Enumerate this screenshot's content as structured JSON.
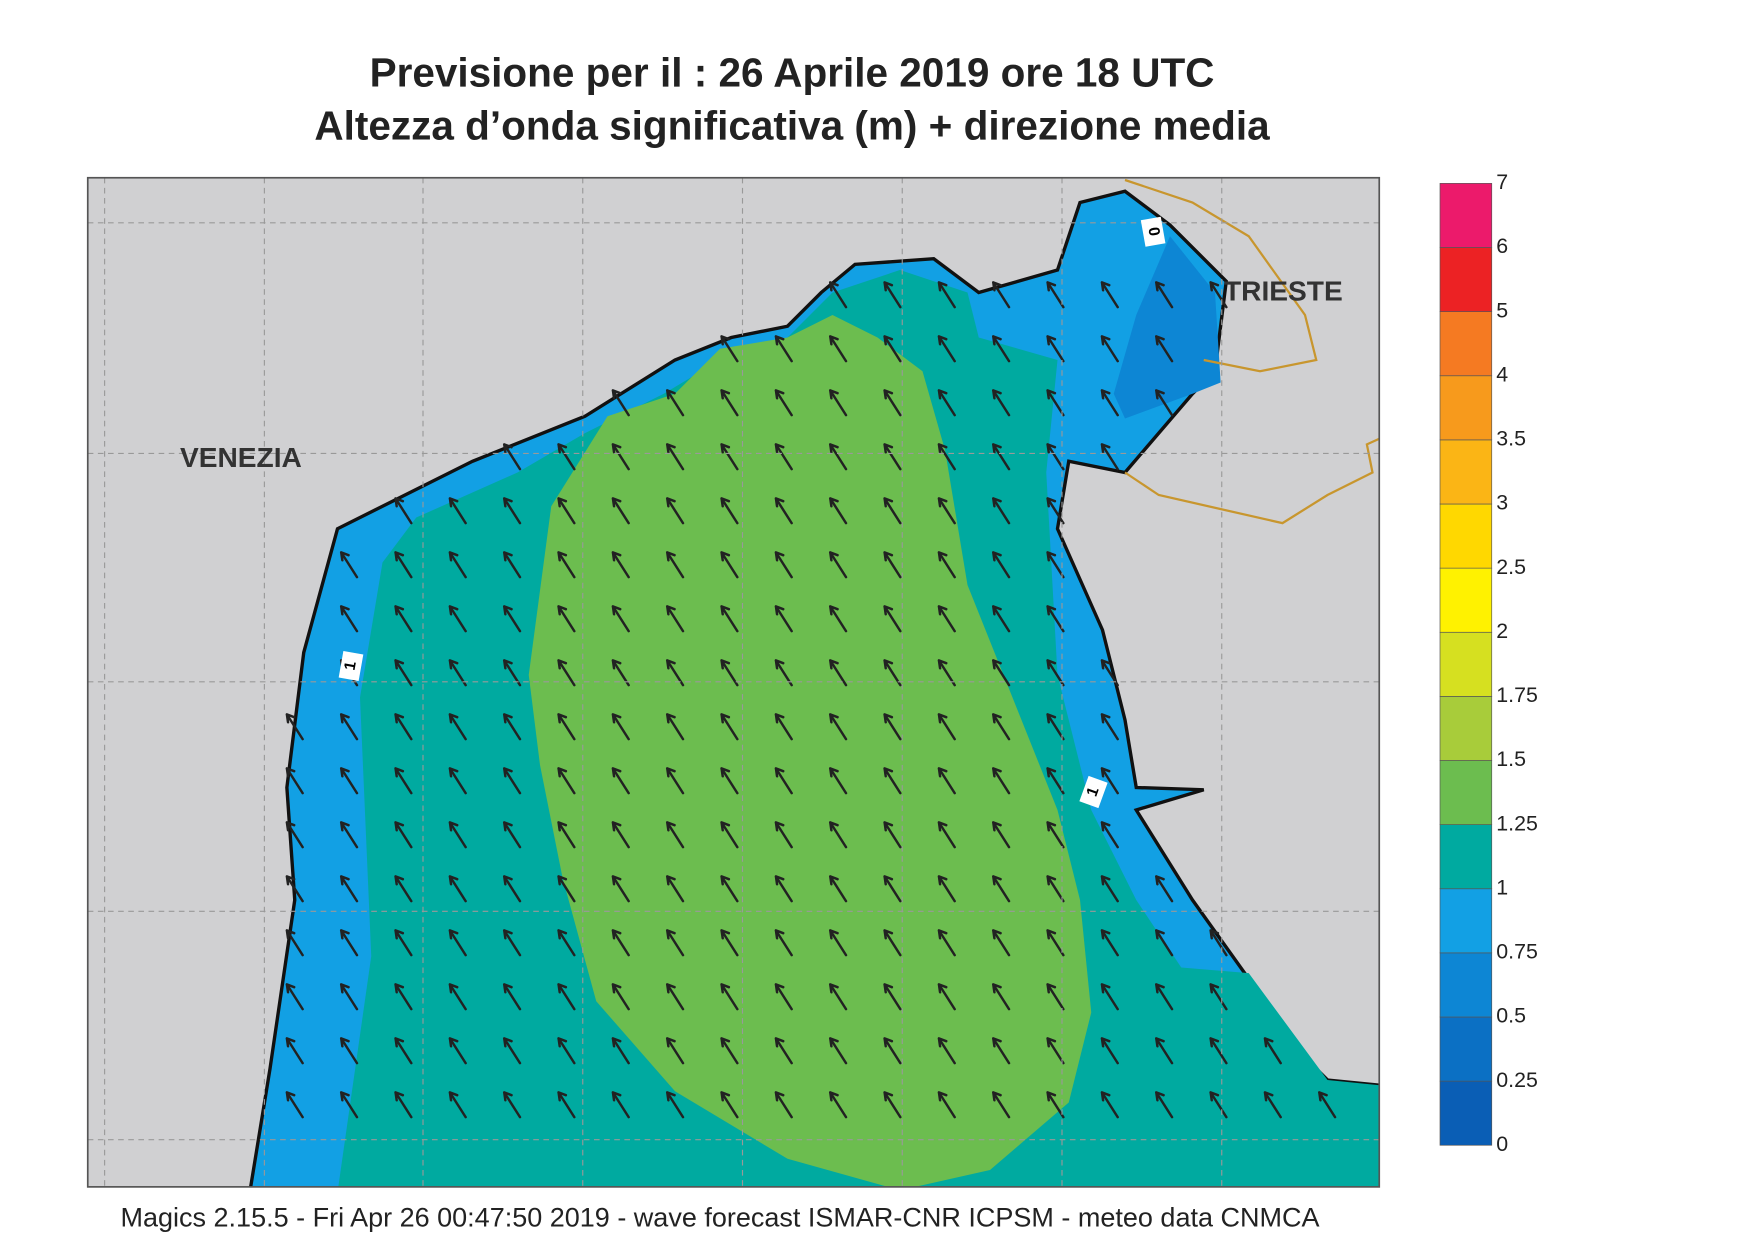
{
  "header": {
    "title": "Previsione per il  :  26   Aprile  2019   ore 18 UTC",
    "subtitle": "Altezza d’onda significativa (m) + direzione media"
  },
  "places": [
    "VENEZIA",
    "TRIESTE"
  ],
  "contour_labels": [
    "0",
    "1",
    "1"
  ],
  "colorbar": {
    "levels": [
      "0",
      "0.25",
      "0.5",
      "0.75",
      "1",
      "1.25",
      "1.5",
      "1.75",
      "2",
      "2.5",
      "3",
      "3.5",
      "4",
      "5",
      "6",
      "7"
    ],
    "colors": [
      "#0a5eb5",
      "#0b70c4",
      "#0d86d4",
      "#12a0e4",
      "#00aaa0",
      "#6cbd4f",
      "#a8cc3a",
      "#d6e020",
      "#fff200",
      "#ffd800",
      "#fbb515",
      "#f79a1c",
      "#f57a22",
      "#ec2224",
      "#ec1a6b"
    ]
  },
  "footer": "Magics 2.15.5 - Fri Apr 26 00:47:50 2019 - wave forecast  ISMAR-CNR  ICPSM - meteo data   CNMCA"
}
